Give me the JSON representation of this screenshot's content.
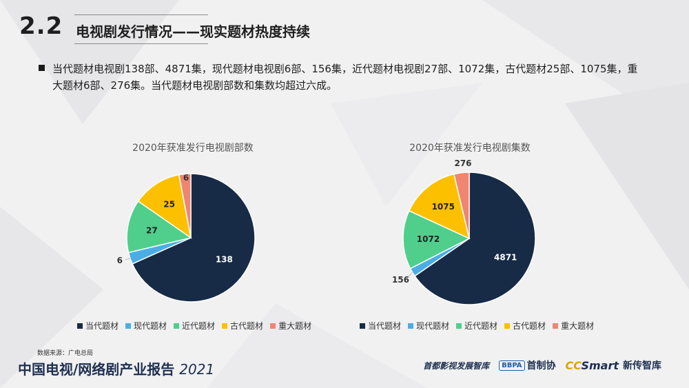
{
  "header": {
    "section_number": "2.2",
    "section_title": "电视剧发行情况——现实题材热度持续"
  },
  "bullet": {
    "text": "当代题材电视剧138部、4871集，现代题材电视剧6部、156集，近代题材电视剧27部、1072集，古代题材25部、1075集，重大题材6部、276集。当代题材电视剧部数和集数均超过六成。"
  },
  "colors": {
    "当代题材": "#172b46",
    "现代题材": "#4aaee4",
    "近代题材": "#4fcf8b",
    "古代题材": "#fcc000",
    "重大题材": "#f08572"
  },
  "chart_data": [
    {
      "type": "pie",
      "title": "2020年获准发行电视剧部数",
      "categories": [
        "当代题材",
        "现代题材",
        "近代题材",
        "古代题材",
        "重大题材"
      ],
      "values": [
        138,
        6,
        27,
        25,
        6
      ],
      "legend": "bottom"
    },
    {
      "type": "pie",
      "title": "2020年获准发行电视剧集数",
      "categories": [
        "当代题材",
        "现代题材",
        "近代题材",
        "古代题材",
        "重大题材"
      ],
      "values": [
        4871,
        156,
        1072,
        1075,
        276
      ],
      "legend": "bottom"
    }
  ],
  "footer": {
    "source": "数据来源：广电总局",
    "report_title": "中国电视/网络剧产业报告",
    "report_year": "2021",
    "logo1": "首都影视发展智库",
    "logo2_box": "BBPA",
    "logo2_text": "首制协",
    "logo3_cc": "CC",
    "logo3_smart": "Smart",
    "logo3_text": "新传智库"
  }
}
